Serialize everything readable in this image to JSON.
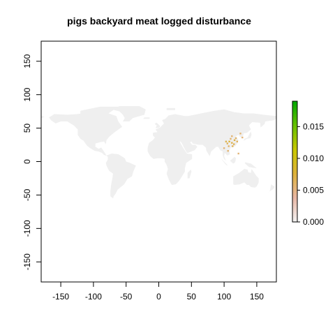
{
  "chart_data": {
    "type": "heatmap",
    "title": "pigs backyard meat logged disturbance",
    "xlabel": "",
    "ylabel": "",
    "xlim": [
      -180,
      180
    ],
    "ylim": [
      -180,
      180
    ],
    "x_ticks": [
      -150,
      -100,
      -50,
      0,
      50,
      100,
      150
    ],
    "x_tick_labels": [
      "-150",
      "-100",
      "-50",
      "0",
      "50",
      "100",
      "150"
    ],
    "y_ticks": [
      -150,
      -100,
      -50,
      0,
      50,
      100,
      150
    ],
    "y_tick_labels": [
      "-150",
      "-100",
      "-50",
      "0",
      "50",
      "100",
      "150"
    ],
    "grid": false,
    "land_color": "#efefef",
    "legend": {
      "placement": "right",
      "range": [
        0,
        0.019
      ],
      "ticks": [
        0,
        0.005,
        0.01,
        0.015
      ],
      "tick_labels": [
        "0.000",
        "0.005",
        "0.010",
        "0.015"
      ],
      "colors": [
        "#f2f2f2",
        "#e8b6a4",
        "#ddb23a",
        "#c8c800",
        "#66c000",
        "#00a600"
      ]
    },
    "hotspots": [
      {
        "lon": 105,
        "lat": 27,
        "value": 0.0012
      },
      {
        "lon": 108,
        "lat": 30,
        "value": 0.0018
      },
      {
        "lon": 112,
        "lat": 28,
        "value": 0.0015
      },
      {
        "lon": 113,
        "lat": 23,
        "value": 0.0012
      },
      {
        "lon": 116,
        "lat": 32,
        "value": 0.0016
      },
      {
        "lon": 118,
        "lat": 35,
        "value": 0.001
      },
      {
        "lon": 110,
        "lat": 34,
        "value": 0.0009
      },
      {
        "lon": 103,
        "lat": 30,
        "value": 0.0014
      },
      {
        "lon": 120,
        "lat": 30,
        "value": 0.0011
      },
      {
        "lon": 115,
        "lat": 26,
        "value": 0.0013
      },
      {
        "lon": 107,
        "lat": 23,
        "value": 0.001
      },
      {
        "lon": 125,
        "lat": 42,
        "value": 0.0008
      },
      {
        "lon": 106,
        "lat": 16,
        "value": 0.0008
      },
      {
        "lon": 100,
        "lat": 20,
        "value": 0.0007
      },
      {
        "lon": 122,
        "lat": 12,
        "value": 0.0007
      },
      {
        "lon": 128,
        "lat": 36,
        "value": 0.0007
      },
      {
        "lon": 112,
        "lat": 38,
        "value": 0.0008
      }
    ]
  }
}
